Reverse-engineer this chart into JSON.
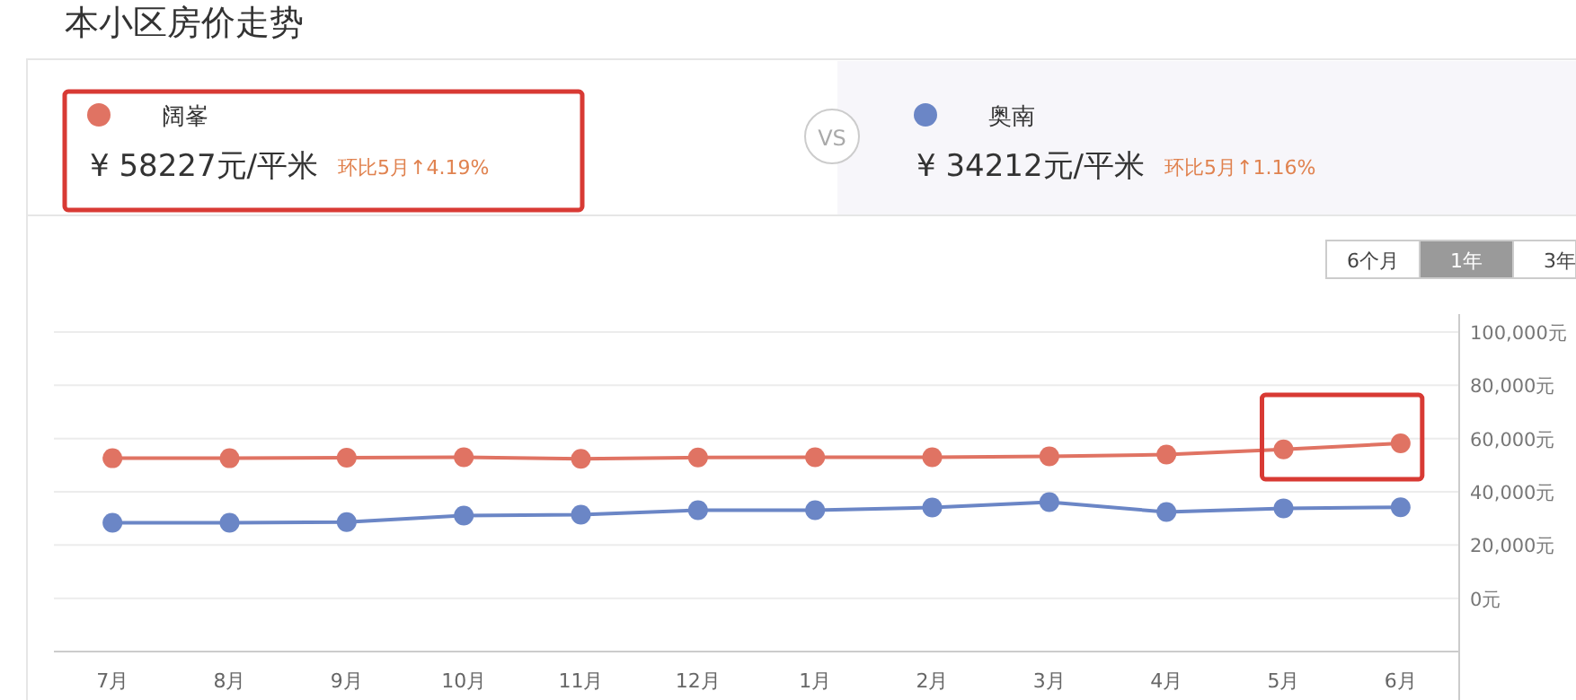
{
  "chart_data": {
    "type": "line",
    "title": "本小区房价走势",
    "categories": [
      "7月",
      "8月",
      "9月",
      "10月",
      "11月",
      "12月",
      "1月",
      "2月",
      "3月",
      "4月",
      "5月",
      "6月"
    ],
    "series": [
      {
        "name": "阔峯",
        "color": "#e07363",
        "values": [
          52600,
          52600,
          52800,
          53000,
          52400,
          52900,
          53000,
          53000,
          53300,
          54000,
          55900,
          58200
        ]
      },
      {
        "name": "奥南",
        "color": "#6b86c6",
        "values": [
          28400,
          28400,
          28600,
          31100,
          31400,
          33100,
          33100,
          34100,
          36100,
          32400,
          33800,
          34200
        ]
      }
    ],
    "ylim": [
      -20000,
      100000
    ],
    "yticks": [
      {
        "value": 0,
        "label": "0元"
      },
      {
        "value": 20000,
        "label": "20,000元"
      },
      {
        "value": 40000,
        "label": "40,000元"
      },
      {
        "value": 60000,
        "label": "60,000元"
      },
      {
        "value": 80000,
        "label": "80,000元"
      },
      {
        "value": 100000,
        "label": "100,000元"
      }
    ],
    "grid": "y",
    "legend": "top",
    "marker": "circle",
    "line_style": "solid",
    "annotations": [
      "¥ 58227元/平米",
      "环比5月↑4.19%",
      "¥ 34212元/平米",
      "环比5月↑1.16%",
      "VS",
      "6个月",
      "1年",
      "3年"
    ]
  }
}
